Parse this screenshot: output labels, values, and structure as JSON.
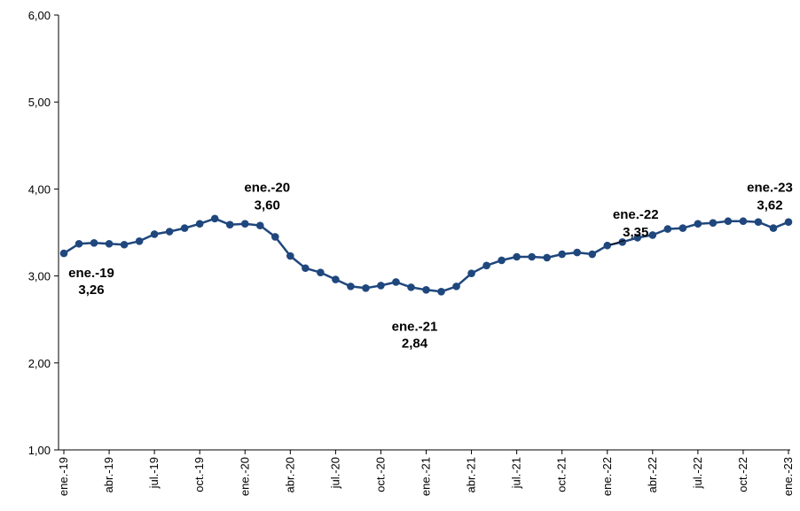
{
  "chart_data": {
    "type": "line",
    "title": "",
    "xlabel": "",
    "ylabel": "",
    "ylim": [
      1,
      6
    ],
    "yticks": [
      "1,00",
      "2,00",
      "3,00",
      "4,00",
      "5,00",
      "6,00"
    ],
    "grid": false,
    "legend": "none",
    "color": "#1F477D",
    "x_tick_labels": [
      "ene.-19",
      "abr.-19",
      "jul.-19",
      "oct.-19",
      "ene.-20",
      "abr.-20",
      "jul.-20",
      "oct.-20",
      "ene.-21",
      "abr.-21",
      "jul.-21",
      "oct.-21",
      "ene.-22",
      "abr.-22",
      "jul.-22",
      "oct.-22",
      "ene.-23"
    ],
    "series": [
      {
        "values": [
          3.26,
          3.37,
          3.38,
          3.37,
          3.36,
          3.4,
          3.48,
          3.51,
          3.55,
          3.6,
          3.66,
          3.59,
          3.6,
          3.58,
          3.45,
          3.23,
          3.09,
          3.04,
          2.96,
          2.88,
          2.86,
          2.89,
          2.93,
          2.87,
          2.84,
          2.82,
          2.88,
          3.03,
          3.12,
          3.18,
          3.22,
          3.22,
          3.21,
          3.25,
          3.27,
          3.25,
          3.35,
          3.39,
          3.44,
          3.47,
          3.54,
          3.55,
          3.6,
          3.61,
          3.63,
          3.63,
          3.62,
          3.55,
          3.62
        ]
      }
    ],
    "annotations": [
      {
        "index": 0,
        "label": "ene.-19",
        "value": "3,26"
      },
      {
        "index": 12,
        "label": "ene.-20",
        "value": "3,60"
      },
      {
        "index": 24,
        "label": "ene.-21",
        "value": "2,84"
      },
      {
        "index": 36,
        "label": "ene.-22",
        "value": "3,35"
      },
      {
        "index": 48,
        "label": "ene.-23",
        "value": "3,62"
      }
    ]
  }
}
